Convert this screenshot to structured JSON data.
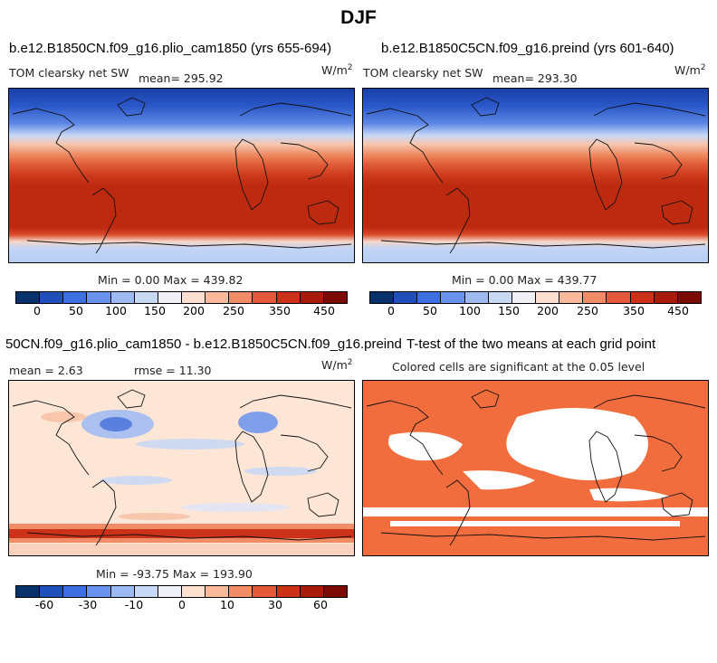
{
  "figure_title": "DJF",
  "panel1": {
    "title": "b.e12.B1850CN.f09_g16.plio_cam1850 (yrs 655-694)",
    "variable": "TOM clearsky net SW",
    "mean": "mean= 295.92",
    "units": "W/m",
    "units_sup": "2",
    "minmax": "Min =    0.00 Max = 439.82"
  },
  "panel2": {
    "title": "b.e12.B1850C5CN.f09_g16.preind (yrs 601-640)",
    "variable": "TOM clearsky net SW",
    "mean": "mean= 293.30",
    "units": "W/m",
    "units_sup": "2",
    "minmax": "Min =    0.00 Max = 439.77"
  },
  "panel3": {
    "title": "50CN.f09_g16.plio_cam1850 - b.e12.B1850C5CN.f09_g16.preind",
    "mean": "mean =    2.63",
    "rmse": "rmse =   11.30",
    "units": "W/m",
    "units_sup": "2",
    "minmax": "Min = -93.75 Max = 193.90"
  },
  "panel4": {
    "title": "T-test of the two means at each grid point",
    "subtitle": "Colored cells are significant at the 0.05 level"
  },
  "colorbar_abs": {
    "colors": [
      "#08306b",
      "#1f4fb8",
      "#3d6fe0",
      "#6a93ef",
      "#9dbaf3",
      "#c8d9f6",
      "#eef0f5",
      "#fde0cf",
      "#f9b99a",
      "#f08c66",
      "#e4593a",
      "#cc3217",
      "#a81a0a",
      "#7c0a05"
    ],
    "tick_labels": [
      "0",
      "50",
      "100",
      "150",
      "200",
      "250",
      "350",
      "450"
    ]
  },
  "colorbar_diff": {
    "colors": [
      "#08306b",
      "#1f4fb8",
      "#3d6fe0",
      "#6a93ef",
      "#9dbaf3",
      "#c8d9f6",
      "#eef0f5",
      "#fde0cf",
      "#f9b99a",
      "#f08c66",
      "#e4593a",
      "#cc3217",
      "#a81a0a",
      "#7c0a05"
    ],
    "tick_labels": [
      "-60",
      "-30",
      "-10",
      "0",
      "10",
      "30",
      "60"
    ]
  },
  "ttest_color": "#f26d3d"
}
